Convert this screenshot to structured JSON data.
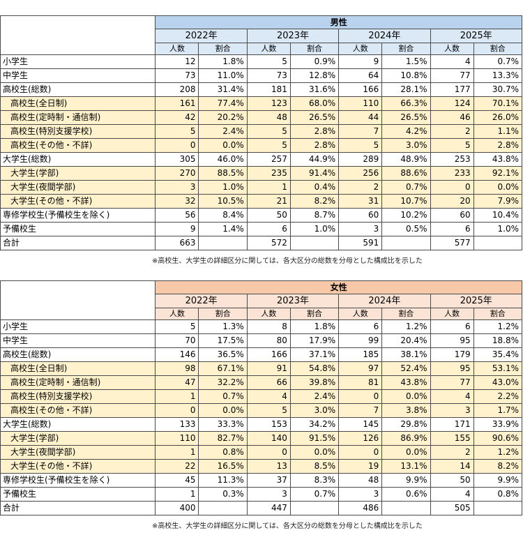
{
  "male": {
    "gender": "男性",
    "years": [
      "2022年",
      "2023年",
      "2024年",
      "2025年"
    ],
    "col_count": "人数",
    "col_ratio": "割合",
    "rows": [
      {
        "label": "小学生",
        "sub": false,
        "cells": [
          "12",
          "1.8%",
          "5",
          "0.9%",
          "9",
          "1.5%",
          "4",
          "0.7%"
        ]
      },
      {
        "label": "中学生",
        "sub": false,
        "cells": [
          "73",
          "11.0%",
          "73",
          "12.8%",
          "64",
          "10.8%",
          "77",
          "13.3%"
        ]
      },
      {
        "label": "高校生(総数)",
        "sub": false,
        "cells": [
          "208",
          "31.4%",
          "181",
          "31.6%",
          "166",
          "28.1%",
          "177",
          "30.7%"
        ]
      },
      {
        "label": "高校生(全日制)",
        "sub": true,
        "cells": [
          "161",
          "77.4%",
          "123",
          "68.0%",
          "110",
          "66.3%",
          "124",
          "70.1%"
        ]
      },
      {
        "label": "高校生(定時制・通信制)",
        "sub": true,
        "cells": [
          "42",
          "20.2%",
          "48",
          "26.5%",
          "44",
          "26.5%",
          "46",
          "26.0%"
        ]
      },
      {
        "label": "高校生(特別支援学校)",
        "sub": true,
        "cells": [
          "5",
          "2.4%",
          "5",
          "2.8%",
          "7",
          "4.2%",
          "2",
          "1.1%"
        ]
      },
      {
        "label": "高校生(その他・不詳)",
        "sub": true,
        "cells": [
          "0",
          "0.0%",
          "5",
          "2.8%",
          "5",
          "3.0%",
          "5",
          "2.8%"
        ]
      },
      {
        "label": "大学生(総数)",
        "sub": false,
        "cells": [
          "305",
          "46.0%",
          "257",
          "44.9%",
          "289",
          "48.9%",
          "253",
          "43.8%"
        ]
      },
      {
        "label": "大学生(学部)",
        "sub": true,
        "cells": [
          "270",
          "88.5%",
          "235",
          "91.4%",
          "256",
          "88.6%",
          "233",
          "92.1%"
        ]
      },
      {
        "label": "大学生(夜間学部)",
        "sub": true,
        "cells": [
          "3",
          "1.0%",
          "1",
          "0.4%",
          "2",
          "0.7%",
          "0",
          "0.0%"
        ]
      },
      {
        "label": "大学生(その他・不詳)",
        "sub": true,
        "cells": [
          "32",
          "10.5%",
          "21",
          "8.2%",
          "31",
          "10.7%",
          "20",
          "7.9%"
        ]
      },
      {
        "label": "専修学校生(予備校生を除く)",
        "sub": false,
        "cells": [
          "56",
          "8.4%",
          "50",
          "8.7%",
          "60",
          "10.2%",
          "60",
          "10.4%"
        ]
      },
      {
        "label": "予備校生",
        "sub": false,
        "cells": [
          "9",
          "1.4%",
          "6",
          "1.0%",
          "3",
          "0.5%",
          "6",
          "1.0%"
        ]
      },
      {
        "label": "合計",
        "sub": false,
        "cells": [
          "663",
          "",
          "572",
          "",
          "591",
          "",
          "577",
          ""
        ]
      }
    ],
    "note": "※高校生、大学生の詳細区分に関しては、各大区分の総数を分母とした構成比を示した"
  },
  "female": {
    "gender": "女性",
    "years": [
      "2022年",
      "2023年",
      "2024年",
      "2025年"
    ],
    "col_count": "人数",
    "col_ratio": "割合",
    "rows": [
      {
        "label": "小学生",
        "sub": false,
        "cells": [
          "5",
          "1.3%",
          "8",
          "1.8%",
          "6",
          "1.2%",
          "6",
          "1.2%"
        ]
      },
      {
        "label": "中学生",
        "sub": false,
        "cells": [
          "70",
          "17.5%",
          "80",
          "17.9%",
          "99",
          "20.4%",
          "95",
          "18.8%"
        ]
      },
      {
        "label": "高校生(総数)",
        "sub": false,
        "cells": [
          "146",
          "36.5%",
          "166",
          "37.1%",
          "185",
          "38.1%",
          "179",
          "35.4%"
        ]
      },
      {
        "label": "高校生(全日制)",
        "sub": true,
        "cells": [
          "98",
          "67.1%",
          "91",
          "54.8%",
          "97",
          "52.4%",
          "95",
          "53.1%"
        ]
      },
      {
        "label": "高校生(定時制・通信制)",
        "sub": true,
        "cells": [
          "47",
          "32.2%",
          "66",
          "39.8%",
          "81",
          "43.8%",
          "77",
          "43.0%"
        ]
      },
      {
        "label": "高校生(特別支援学校)",
        "sub": true,
        "cells": [
          "1",
          "0.7%",
          "4",
          "2.4%",
          "0",
          "0.0%",
          "4",
          "2.2%"
        ]
      },
      {
        "label": "高校生(その他・不詳)",
        "sub": true,
        "cells": [
          "0",
          "0.0%",
          "5",
          "3.0%",
          "7",
          "3.8%",
          "3",
          "1.7%"
        ]
      },
      {
        "label": "大学生(総数)",
        "sub": false,
        "cells": [
          "133",
          "33.3%",
          "153",
          "34.2%",
          "145",
          "29.8%",
          "171",
          "33.9%"
        ]
      },
      {
        "label": "大学生(学部)",
        "sub": true,
        "cells": [
          "110",
          "82.7%",
          "140",
          "91.5%",
          "126",
          "86.9%",
          "155",
          "90.6%"
        ]
      },
      {
        "label": "大学生(夜間学部)",
        "sub": true,
        "cells": [
          "1",
          "0.8%",
          "0",
          "0.0%",
          "0",
          "0.0%",
          "2",
          "1.2%"
        ]
      },
      {
        "label": "大学生(その他・不詳)",
        "sub": true,
        "cells": [
          "22",
          "16.5%",
          "13",
          "8.5%",
          "19",
          "13.1%",
          "14",
          "8.2%"
        ]
      },
      {
        "label": "専修学校生(予備校生を除く)",
        "sub": false,
        "cells": [
          "45",
          "11.3%",
          "37",
          "8.3%",
          "48",
          "9.9%",
          "50",
          "9.9%"
        ]
      },
      {
        "label": "予備校生",
        "sub": false,
        "cells": [
          "1",
          "0.3%",
          "3",
          "0.7%",
          "3",
          "0.6%",
          "4",
          "0.8%"
        ]
      },
      {
        "label": "合計",
        "sub": false,
        "cells": [
          "400",
          "",
          "447",
          "",
          "486",
          "",
          "505",
          ""
        ]
      }
    ],
    "note": "※高校生、大学生の詳細区分に関しては、各大区分の総数を分母とした構成比を示した"
  }
}
